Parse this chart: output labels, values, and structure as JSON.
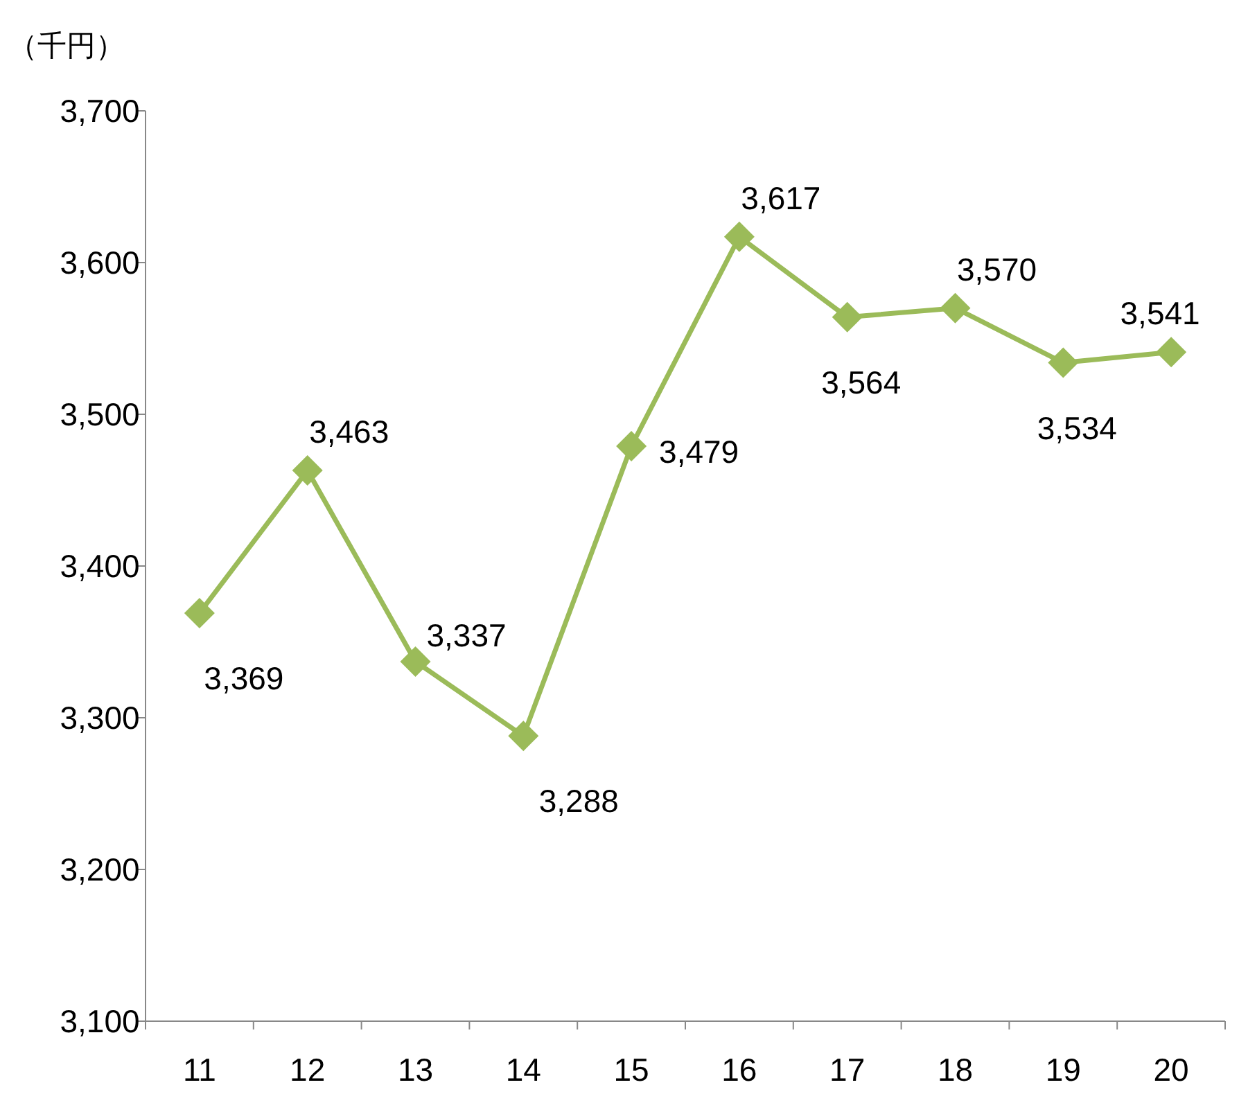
{
  "chart_data": {
    "type": "line",
    "ylabel": "（千円）",
    "categories": [
      "11",
      "12",
      "13",
      "14",
      "15",
      "16",
      "17",
      "18",
      "19",
      "20"
    ],
    "series": [
      {
        "color": "#9bbb59",
        "values": [
          3369,
          3463,
          3337,
          3288,
          3479,
          3617,
          3564,
          3570,
          3534,
          3541
        ],
        "value_labels": [
          "3,369",
          "3,463",
          "3,337",
          "3,288",
          "3,479",
          "3,617",
          "3,564",
          "3,570",
          "3,534",
          "3,541"
        ]
      }
    ],
    "ylim": [
      3100,
      3700
    ],
    "yticks": [
      {
        "value": 3100,
        "label": "3,100"
      },
      {
        "value": 3200,
        "label": "3,200"
      },
      {
        "value": 3300,
        "label": "3,300"
      },
      {
        "value": 3400,
        "label": "3,400"
      },
      {
        "value": 3500,
        "label": "3,500"
      },
      {
        "value": 3600,
        "label": "3,600"
      },
      {
        "value": 3700,
        "label": "3,700"
      }
    ],
    "marker": "diamond"
  }
}
